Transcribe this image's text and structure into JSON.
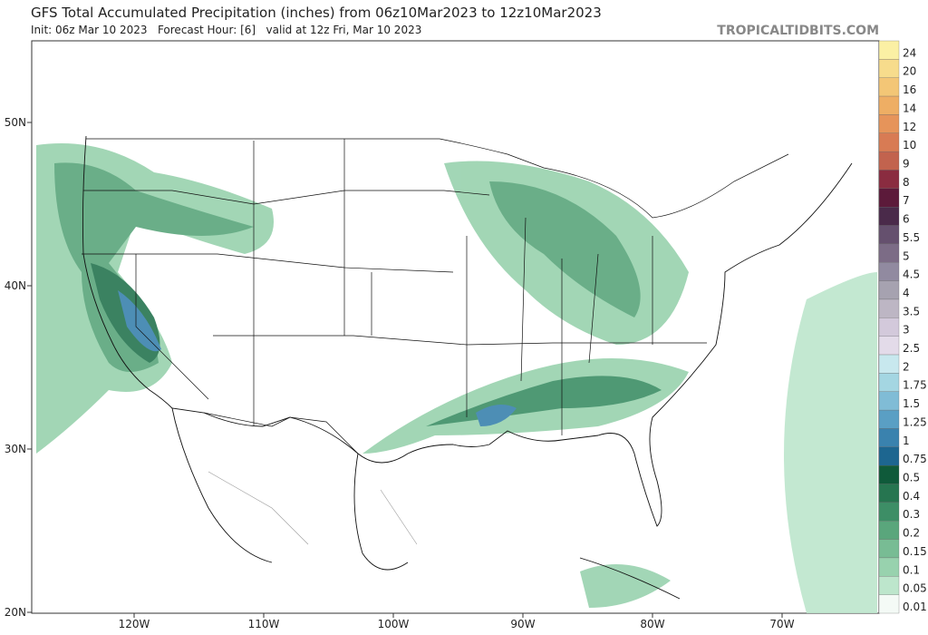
{
  "header": {
    "title": "GFS Total Accumulated Precipitation (inches) from 06z10Mar2023 to 12z10Mar2023",
    "subtitle": "Init: 06z Mar 10 2023   Forecast Hour: [6]   valid at 12z Fri, Mar 10 2023",
    "watermark": "TROPICALTIDBITS.COM"
  },
  "axes": {
    "lat": [
      "50N",
      "40N",
      "30N",
      "20N"
    ],
    "lon": [
      "120W",
      "110W",
      "100W",
      "90W",
      "80W",
      "70W"
    ]
  },
  "legend": {
    "levels": [
      {
        "label": "24",
        "color": "#fbf0a4"
      },
      {
        "label": "20",
        "color": "#f7dc8c"
      },
      {
        "label": "16",
        "color": "#f3c676"
      },
      {
        "label": "14",
        "color": "#eeae64"
      },
      {
        "label": "12",
        "color": "#e6945a"
      },
      {
        "label": "10",
        "color": "#d87b54"
      },
      {
        "label": "9",
        "color": "#c2634e"
      },
      {
        "label": "8",
        "color": "#8a2c40"
      },
      {
        "label": "7",
        "color": "#5c1a3a"
      },
      {
        "label": "6",
        "color": "#4a2a4a"
      },
      {
        "label": "5.5",
        "color": "#65506e"
      },
      {
        "label": "5",
        "color": "#7c6c86"
      },
      {
        "label": "4.5",
        "color": "#918aa0"
      },
      {
        "label": "4",
        "color": "#a6a2b0"
      },
      {
        "label": "3.5",
        "color": "#bdb6c4"
      },
      {
        "label": "3",
        "color": "#d3c9db"
      },
      {
        "label": "2.5",
        "color": "#e3dbe9"
      },
      {
        "label": "2",
        "color": "#c8e8ee"
      },
      {
        "label": "1.75",
        "color": "#a4d6e2"
      },
      {
        "label": "1.5",
        "color": "#80bcd6"
      },
      {
        "label": "1.25",
        "color": "#5a9fc4"
      },
      {
        "label": "1",
        "color": "#3a82ae"
      },
      {
        "label": "0.75",
        "color": "#1d6690"
      },
      {
        "label": "0.5",
        "color": "#0f5a3a"
      },
      {
        "label": "0.4",
        "color": "#267550"
      },
      {
        "label": "0.3",
        "color": "#3d8e66"
      },
      {
        "label": "0.2",
        "color": "#5aa67c"
      },
      {
        "label": "0.15",
        "color": "#78bc94"
      },
      {
        "label": "0.1",
        "color": "#98d2ae"
      },
      {
        "label": "0.05",
        "color": "#bde6cc"
      },
      {
        "label": "0.01",
        "color": "#f4faf6"
      }
    ]
  }
}
